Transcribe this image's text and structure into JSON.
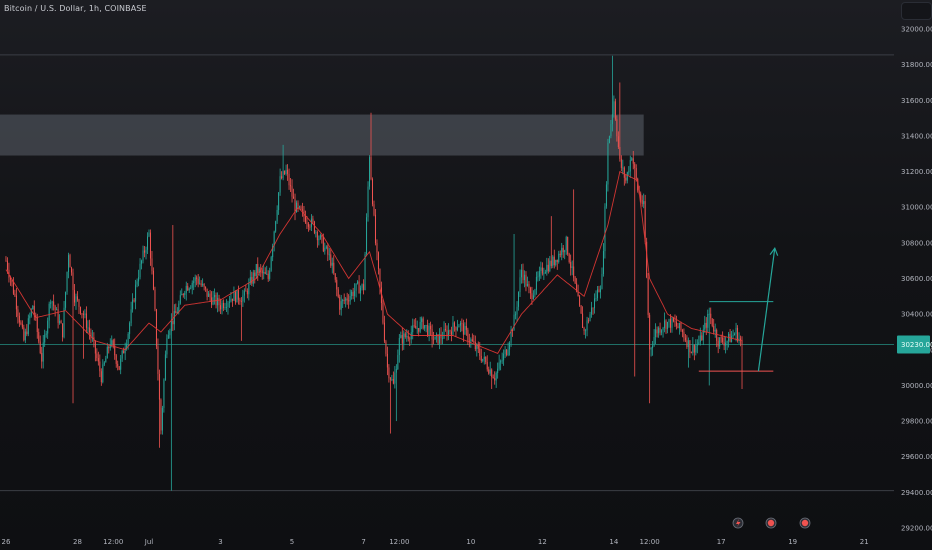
{
  "header": {
    "symbol_title": "Bitcoin / U.S. Dollar, 1h, COINBASE"
  },
  "colors": {
    "up": "#26a69a",
    "down": "#ef5350",
    "ma": "#e53935",
    "zone": "#4a4d55",
    "arrow": "#26a69a",
    "price_tag": "#26a69a",
    "hline": "#3b3e45"
  },
  "chart_data": {
    "type": "candlestick",
    "symbol": "BTCUSD",
    "interval": "1h",
    "exchange": "COINBASE",
    "ylim": [
      29200,
      32000
    ],
    "y_ticks": [
      32000,
      31800,
      31600,
      31400,
      31200,
      31000,
      30800,
      30600,
      30400,
      30200,
      30000,
      29800,
      29600,
      29400,
      29200
    ],
    "y_tick_labels": [
      "32000.00",
      "31800.00",
      "31600.00",
      "31400.00",
      "31200.00",
      "31000.00",
      "30800.00",
      "30600.00",
      "30400.00",
      "30200.00",
      "30000.00",
      "29800.00",
      "29600.00",
      "29400.00",
      "29200.00"
    ],
    "x_tick_labels": [
      "26",
      "28",
      "12:00",
      "Jul",
      "3",
      "5",
      "7",
      "12:00",
      "10",
      "12",
      "14",
      "12:00",
      "17",
      "19",
      "21"
    ],
    "x_tick_values": [
      0,
      48,
      72,
      96,
      144,
      192,
      240,
      264,
      312,
      360,
      408,
      432,
      480,
      528,
      576
    ],
    "x_range": [
      -4,
      596
    ],
    "current_price": 30230,
    "current_price_label": "30230.00",
    "resistance_zone": [
      31290,
      31520
    ],
    "horizontal_lines": [
      31855,
      29410,
      30230
    ],
    "range_lines": [
      {
        "x": [
          472,
          515
        ],
        "y": 30470
      },
      {
        "x": [
          465,
          515
        ],
        "y": 30080
      }
    ],
    "projection_arrow": {
      "from": [
        505,
        30080
      ],
      "to": [
        516,
        30770
      ]
    },
    "event_icons": [
      "flash-icon",
      "earnings-icon",
      "earnings-icon"
    ],
    "anchors": [
      [
        0,
        30700
      ],
      [
        6,
        30500
      ],
      [
        12,
        30250
      ],
      [
        18,
        30450
      ],
      [
        24,
        30150
      ],
      [
        30,
        30500
      ],
      [
        38,
        30300
      ],
      [
        42,
        30750
      ],
      [
        46,
        30500
      ],
      [
        52,
        30400
      ],
      [
        58,
        30250
      ],
      [
        64,
        30050
      ],
      [
        70,
        30250
      ],
      [
        76,
        30100
      ],
      [
        82,
        30300
      ],
      [
        88,
        30600
      ],
      [
        96,
        30850
      ],
      [
        100,
        30400
      ],
      [
        104,
        29750
      ],
      [
        108,
        30300
      ],
      [
        114,
        30400
      ],
      [
        120,
        30550
      ],
      [
        128,
        30600
      ],
      [
        136,
        30500
      ],
      [
        144,
        30450
      ],
      [
        152,
        30500
      ],
      [
        160,
        30500
      ],
      [
        168,
        30650
      ],
      [
        176,
        30600
      ],
      [
        184,
        31150
      ],
      [
        188,
        31200
      ],
      [
        194,
        31000
      ],
      [
        200,
        30950
      ],
      [
        206,
        30900
      ],
      [
        212,
        30800
      ],
      [
        218,
        30700
      ],
      [
        224,
        30450
      ],
      [
        230,
        30500
      ],
      [
        236,
        30550
      ],
      [
        240,
        30550
      ],
      [
        244,
        31300
      ],
      [
        248,
        30800
      ],
      [
        252,
        30450
      ],
      [
        256,
        30100
      ],
      [
        260,
        30000
      ],
      [
        264,
        30250
      ],
      [
        272,
        30300
      ],
      [
        280,
        30350
      ],
      [
        288,
        30250
      ],
      [
        296,
        30300
      ],
      [
        304,
        30350
      ],
      [
        312,
        30250
      ],
      [
        320,
        30150
      ],
      [
        328,
        30050
      ],
      [
        336,
        30200
      ],
      [
        342,
        30400
      ],
      [
        346,
        30650
      ],
      [
        352,
        30500
      ],
      [
        360,
        30650
      ],
      [
        368,
        30700
      ],
      [
        376,
        30800
      ],
      [
        382,
        30550
      ],
      [
        388,
        30300
      ],
      [
        394,
        30450
      ],
      [
        400,
        30600
      ],
      [
        404,
        31350
      ],
      [
        408,
        31600
      ],
      [
        412,
        31250
      ],
      [
        416,
        31150
      ],
      [
        420,
        31300
      ],
      [
        424,
        31100
      ],
      [
        428,
        31000
      ],
      [
        432,
        30200
      ],
      [
        436,
        30300
      ],
      [
        442,
        30350
      ],
      [
        448,
        30350
      ],
      [
        454,
        30300
      ],
      [
        460,
        30200
      ],
      [
        466,
        30250
      ],
      [
        472,
        30400
      ],
      [
        478,
        30250
      ],
      [
        484,
        30250
      ],
      [
        490,
        30300
      ],
      [
        494,
        30230
      ]
    ],
    "ma_anchors": [
      [
        0,
        30650
      ],
      [
        20,
        30380
      ],
      [
        40,
        30420
      ],
      [
        60,
        30250
      ],
      [
        80,
        30200
      ],
      [
        96,
        30350
      ],
      [
        104,
        30300
      ],
      [
        120,
        30450
      ],
      [
        144,
        30480
      ],
      [
        168,
        30600
      ],
      [
        184,
        30850
      ],
      [
        196,
        31000
      ],
      [
        212,
        30850
      ],
      [
        230,
        30600
      ],
      [
        244,
        30750
      ],
      [
        256,
        30400
      ],
      [
        272,
        30280
      ],
      [
        300,
        30280
      ],
      [
        330,
        30180
      ],
      [
        346,
        30400
      ],
      [
        370,
        30620
      ],
      [
        388,
        30500
      ],
      [
        404,
        30900
      ],
      [
        412,
        31200
      ],
      [
        424,
        31150
      ],
      [
        432,
        30600
      ],
      [
        444,
        30400
      ],
      [
        460,
        30320
      ],
      [
        480,
        30280
      ],
      [
        494,
        30250
      ]
    ],
    "spikes": [
      [
        45,
        29900
      ],
      [
        52,
        30150
      ],
      [
        103,
        29650
      ],
      [
        111,
        29410
      ],
      [
        112,
        30900
      ],
      [
        158,
        30250
      ],
      [
        186,
        31350
      ],
      [
        245,
        31530
      ],
      [
        258,
        29730
      ],
      [
        262,
        29800
      ],
      [
        326,
        29980
      ],
      [
        341,
        30850
      ],
      [
        366,
        30950
      ],
      [
        381,
        31100
      ],
      [
        407,
        31850
      ],
      [
        412,
        31700
      ],
      [
        422,
        30050
      ],
      [
        432,
        29900
      ],
      [
        458,
        30100
      ],
      [
        472,
        30000
      ],
      [
        494,
        29980
      ]
    ]
  }
}
